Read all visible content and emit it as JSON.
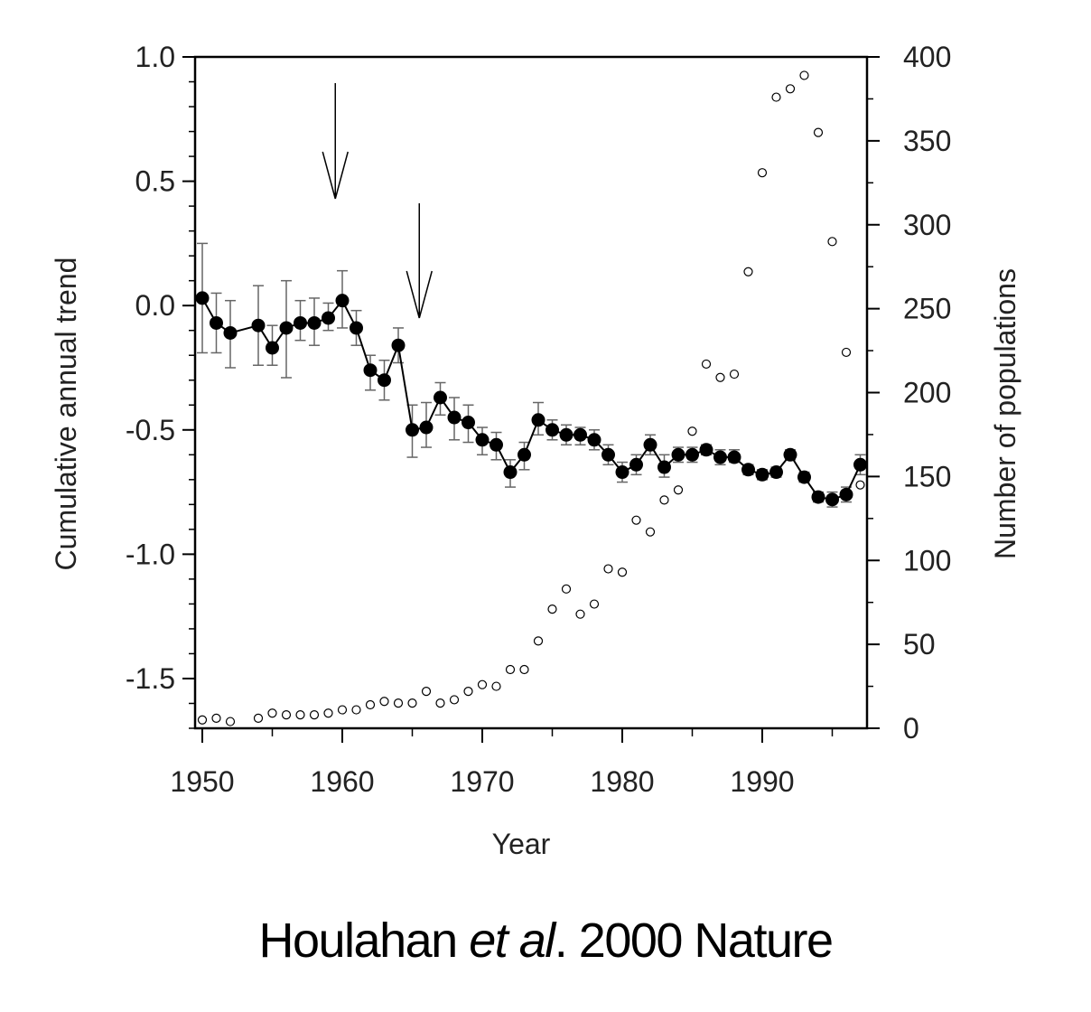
{
  "chart_data": {
    "type": "line",
    "title": "",
    "xlabel": "Year",
    "ylabel_left": "Cumulative annual trend",
    "ylabel_right": "Number of populations",
    "xlim": [
      1949.5,
      1997.5
    ],
    "ylim_left": [
      -1.7,
      1.0
    ],
    "ylim_right": [
      0,
      400
    ],
    "x_ticks": [
      1950,
      1960,
      1970,
      1980,
      1990
    ],
    "x_tick_labels": [
      "1950",
      "1960",
      "1970",
      "1980",
      "1990"
    ],
    "y_left_ticks": [
      1.0,
      0.5,
      0.0,
      -0.5,
      -1.0,
      -1.5
    ],
    "y_left_tick_labels": [
      "1.0",
      "0.5",
      "0.0",
      "-0.5",
      "-1.0",
      "-1.5"
    ],
    "y_right_ticks": [
      0,
      50,
      100,
      150,
      200,
      250,
      300,
      350,
      400
    ],
    "y_right_tick_labels": [
      "0",
      "50",
      "100",
      "150",
      "200",
      "250",
      "300",
      "350",
      "400"
    ],
    "grid": false,
    "series": [
      {
        "axis": "left",
        "style": "filled-circles-line-errorbars",
        "points": [
          {
            "x": 1950,
            "y": 0.03,
            "lo": -0.19,
            "hi": 0.25
          },
          {
            "x": 1951,
            "y": -0.07,
            "lo": -0.19,
            "hi": 0.05
          },
          {
            "x": 1952,
            "y": -0.11,
            "lo": -0.25,
            "hi": 0.02
          },
          {
            "x": 1954,
            "y": -0.08,
            "lo": -0.24,
            "hi": 0.08
          },
          {
            "x": 1955,
            "y": -0.17,
            "lo": -0.24,
            "hi": -0.08
          },
          {
            "x": 1956,
            "y": -0.09,
            "lo": -0.29,
            "hi": 0.1
          },
          {
            "x": 1957,
            "y": -0.07,
            "lo": -0.14,
            "hi": 0.02
          },
          {
            "x": 1958,
            "y": -0.07,
            "lo": -0.16,
            "hi": 0.03
          },
          {
            "x": 1959,
            "y": -0.05,
            "lo": -0.1,
            "hi": 0.01
          },
          {
            "x": 1960,
            "y": 0.02,
            "lo": -0.09,
            "hi": 0.14
          },
          {
            "x": 1961,
            "y": -0.09,
            "lo": -0.16,
            "hi": -0.02
          },
          {
            "x": 1962,
            "y": -0.26,
            "lo": -0.34,
            "hi": -0.2
          },
          {
            "x": 1963,
            "y": -0.3,
            "lo": -0.38,
            "hi": -0.22
          },
          {
            "x": 1964,
            "y": -0.16,
            "lo": -0.23,
            "hi": -0.09
          },
          {
            "x": 1965,
            "y": -0.5,
            "lo": -0.61,
            "hi": -0.4
          },
          {
            "x": 1966,
            "y": -0.49,
            "lo": -0.57,
            "hi": -0.39
          },
          {
            "x": 1967,
            "y": -0.37,
            "lo": -0.44,
            "hi": -0.31
          },
          {
            "x": 1968,
            "y": -0.45,
            "lo": -0.54,
            "hi": -0.37
          },
          {
            "x": 1969,
            "y": -0.47,
            "lo": -0.55,
            "hi": -0.4
          },
          {
            "x": 1970,
            "y": -0.54,
            "lo": -0.6,
            "hi": -0.49
          },
          {
            "x": 1971,
            "y": -0.56,
            "lo": -0.62,
            "hi": -0.51
          },
          {
            "x": 1972,
            "y": -0.67,
            "lo": -0.73,
            "hi": -0.62
          },
          {
            "x": 1973,
            "y": -0.6,
            "lo": -0.66,
            "hi": -0.55
          },
          {
            "x": 1974,
            "y": -0.46,
            "lo": -0.52,
            "hi": -0.39
          },
          {
            "x": 1975,
            "y": -0.5,
            "lo": -0.54,
            "hi": -0.46
          },
          {
            "x": 1976,
            "y": -0.52,
            "lo": -0.56,
            "hi": -0.48
          },
          {
            "x": 1977,
            "y": -0.52,
            "lo": -0.56,
            "hi": -0.49
          },
          {
            "x": 1978,
            "y": -0.54,
            "lo": -0.58,
            "hi": -0.5
          },
          {
            "x": 1979,
            "y": -0.6,
            "lo": -0.64,
            "hi": -0.56
          },
          {
            "x": 1980,
            "y": -0.67,
            "lo": -0.71,
            "hi": -0.63
          },
          {
            "x": 1981,
            "y": -0.64,
            "lo": -0.68,
            "hi": -0.6
          },
          {
            "x": 1982,
            "y": -0.56,
            "lo": -0.6,
            "hi": -0.52
          },
          {
            "x": 1983,
            "y": -0.65,
            "lo": -0.69,
            "hi": -0.6
          },
          {
            "x": 1984,
            "y": -0.6,
            "lo": -0.63,
            "hi": -0.57
          },
          {
            "x": 1985,
            "y": -0.6,
            "lo": -0.63,
            "hi": -0.57
          },
          {
            "x": 1986,
            "y": -0.58,
            "lo": -0.6,
            "hi": -0.56
          },
          {
            "x": 1987,
            "y": -0.61,
            "lo": -0.64,
            "hi": -0.58
          },
          {
            "x": 1988,
            "y": -0.61,
            "lo": -0.63,
            "hi": -0.58
          },
          {
            "x": 1989,
            "y": -0.66,
            "lo": -0.68,
            "hi": -0.64
          },
          {
            "x": 1990,
            "y": -0.68,
            "lo": -0.7,
            "hi": -0.66
          },
          {
            "x": 1991,
            "y": -0.67,
            "lo": -0.69,
            "hi": -0.65
          },
          {
            "x": 1992,
            "y": -0.6,
            "lo": -0.62,
            "hi": -0.58
          },
          {
            "x": 1993,
            "y": -0.69,
            "lo": -0.71,
            "hi": -0.67
          },
          {
            "x": 1994,
            "y": -0.77,
            "lo": -0.79,
            "hi": -0.75
          },
          {
            "x": 1995,
            "y": -0.78,
            "lo": -0.81,
            "hi": -0.75
          },
          {
            "x": 1996,
            "y": -0.76,
            "lo": -0.79,
            "hi": -0.73
          },
          {
            "x": 1997,
            "y": -0.64,
            "lo": -0.68,
            "hi": -0.6
          }
        ]
      },
      {
        "axis": "right",
        "style": "open-circles",
        "points": [
          {
            "x": 1950,
            "y": 5
          },
          {
            "x": 1951,
            "y": 6
          },
          {
            "x": 1952,
            "y": 4
          },
          {
            "x": 1954,
            "y": 6
          },
          {
            "x": 1955,
            "y": 9
          },
          {
            "x": 1956,
            "y": 8
          },
          {
            "x": 1957,
            "y": 8
          },
          {
            "x": 1958,
            "y": 8
          },
          {
            "x": 1959,
            "y": 9
          },
          {
            "x": 1960,
            "y": 11
          },
          {
            "x": 1961,
            "y": 11
          },
          {
            "x": 1962,
            "y": 14
          },
          {
            "x": 1963,
            "y": 16
          },
          {
            "x": 1964,
            "y": 15
          },
          {
            "x": 1965,
            "y": 15
          },
          {
            "x": 1966,
            "y": 22
          },
          {
            "x": 1967,
            "y": 15
          },
          {
            "x": 1968,
            "y": 17
          },
          {
            "x": 1969,
            "y": 22
          },
          {
            "x": 1970,
            "y": 26
          },
          {
            "x": 1971,
            "y": 25
          },
          {
            "x": 1972,
            "y": 35
          },
          {
            "x": 1973,
            "y": 35
          },
          {
            "x": 1974,
            "y": 52
          },
          {
            "x": 1975,
            "y": 71
          },
          {
            "x": 1976,
            "y": 83
          },
          {
            "x": 1977,
            "y": 68
          },
          {
            "x": 1978,
            "y": 74
          },
          {
            "x": 1979,
            "y": 95
          },
          {
            "x": 1980,
            "y": 93
          },
          {
            "x": 1981,
            "y": 124
          },
          {
            "x": 1982,
            "y": 117
          },
          {
            "x": 1983,
            "y": 136
          },
          {
            "x": 1984,
            "y": 142
          },
          {
            "x": 1985,
            "y": 177
          },
          {
            "x": 1986,
            "y": 217
          },
          {
            "x": 1987,
            "y": 209
          },
          {
            "x": 1988,
            "y": 211
          },
          {
            "x": 1989,
            "y": 272
          },
          {
            "x": 1990,
            "y": 331
          },
          {
            "x": 1991,
            "y": 376
          },
          {
            "x": 1992,
            "y": 381
          },
          {
            "x": 1993,
            "y": 389
          },
          {
            "x": 1994,
            "y": 355
          },
          {
            "x": 1995,
            "y": 290
          },
          {
            "x": 1996,
            "y": 224
          },
          {
            "x": 1997,
            "y": 145
          }
        ]
      }
    ],
    "annotations": [
      {
        "type": "arrow",
        "x": 1959.5
      },
      {
        "type": "arrow",
        "x": 1965.5
      }
    ]
  },
  "caption": {
    "authors": "Houlahan",
    "etal": "et al",
    "rest": ". 2000  Nature"
  }
}
